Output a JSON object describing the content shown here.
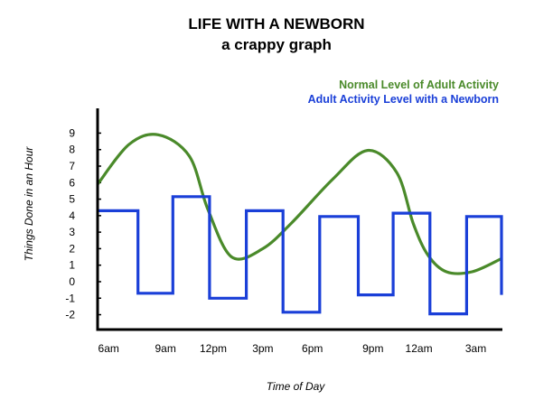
{
  "chart_data": {
    "type": "line",
    "title": "LIFE WITH A NEWBORN",
    "subtitle": "a crappy graph",
    "xlabel": "Time of Day",
    "ylabel": "Things Done in an Hour",
    "ylim": [
      -2.9,
      10.5
    ],
    "xlim": [
      0,
      22
    ],
    "yticks": [
      -2,
      -1,
      0,
      1,
      2,
      3,
      4,
      5,
      6,
      7,
      8,
      9
    ],
    "xtick_labels": [
      {
        "label": "6am",
        "x": 0.6
      },
      {
        "label": "9am",
        "x": 3.7
      },
      {
        "label": "12pm",
        "x": 6.3
      },
      {
        "label": "3pm",
        "x": 9.0
      },
      {
        "label": "6pm",
        "x": 11.7
      },
      {
        "label": "9pm",
        "x": 15.0
      },
      {
        "label": "12am",
        "x": 17.5
      },
      {
        "label": "3am",
        "x": 20.6
      }
    ],
    "legend_position": "top-right",
    "series": [
      {
        "name": "Normal Level of Adult Activity",
        "color": "#4a8a2a",
        "style": "smooth",
        "points": [
          [
            0,
            5.9
          ],
          [
            1.7,
            8.3
          ],
          [
            3.3,
            8.9
          ],
          [
            5.0,
            7.6
          ],
          [
            6.0,
            4.4
          ],
          [
            7.3,
            1.5
          ],
          [
            9.0,
            2.0
          ],
          [
            10.6,
            3.6
          ],
          [
            12.8,
            6.2
          ],
          [
            14.7,
            7.95
          ],
          [
            16.3,
            6.6
          ],
          [
            17.2,
            3.5
          ],
          [
            18.0,
            1.6
          ],
          [
            19.0,
            0.6
          ],
          [
            20.4,
            0.6
          ],
          [
            22.0,
            1.4
          ]
        ]
      },
      {
        "name": "Adult Activity Level with a Newborn",
        "color": "#1a3fd8",
        "style": "step",
        "points": [
          [
            0,
            4.3
          ],
          [
            2.2,
            4.3
          ],
          [
            2.2,
            -0.7
          ],
          [
            4.1,
            -0.7
          ],
          [
            4.1,
            5.15
          ],
          [
            6.1,
            5.15
          ],
          [
            6.1,
            -1.0
          ],
          [
            8.1,
            -1.0
          ],
          [
            8.1,
            4.3
          ],
          [
            10.1,
            4.3
          ],
          [
            10.1,
            -1.85
          ],
          [
            12.1,
            -1.85
          ],
          [
            12.1,
            3.95
          ],
          [
            14.2,
            3.95
          ],
          [
            14.2,
            -0.8
          ],
          [
            16.1,
            -0.8
          ],
          [
            16.1,
            4.15
          ],
          [
            18.1,
            4.15
          ],
          [
            18.1,
            -1.95
          ],
          [
            20.1,
            -1.95
          ],
          [
            20.1,
            3.95
          ],
          [
            22.0,
            3.95
          ],
          [
            22.0,
            -0.8
          ]
        ]
      }
    ]
  }
}
